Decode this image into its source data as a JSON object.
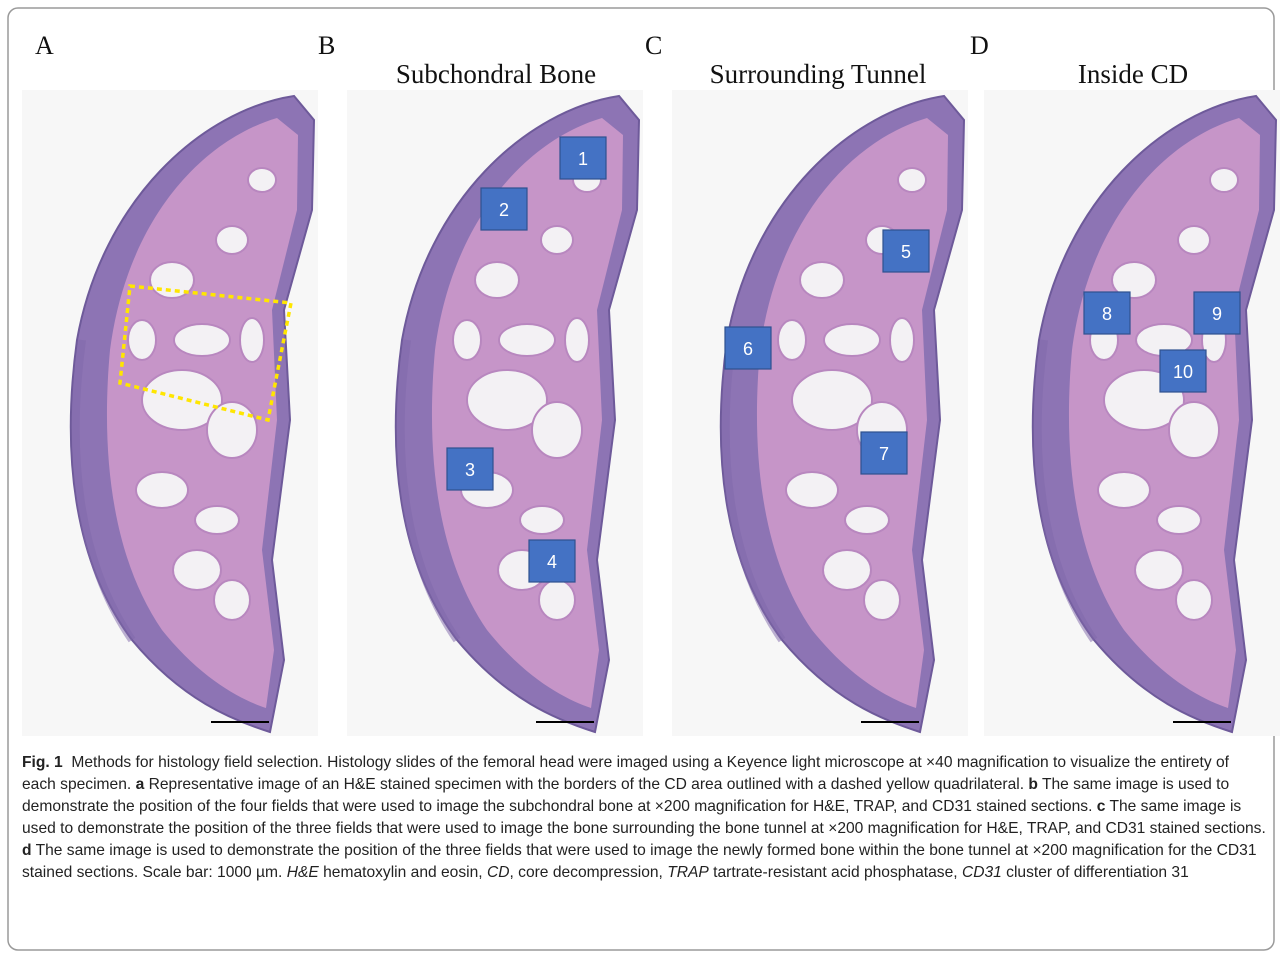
{
  "panels": [
    {
      "letter": "A"
    },
    {
      "letter": "B",
      "title": "Subchondral Bone",
      "boxes": [
        "1",
        "2",
        "3",
        "4"
      ]
    },
    {
      "letter": "C",
      "title": "Surrounding Tunnel",
      "boxes": [
        "5",
        "6",
        "7"
      ]
    },
    {
      "letter": "D",
      "title": "Inside CD",
      "boxes": [
        "8",
        "9",
        "10"
      ]
    }
  ],
  "caption": [
    "Fig. 1",
    "  Methods for histology field selection. Histology slides of the femoral head were imaged using a Keyence light microscope at ×40 magnification to visualize the entirety of each specimen. ",
    "a",
    " Representative image of an H&E stained specimen with the borders of the CD area outlined with a dashed yellow quadrilateral. ",
    "b",
    " The same image is used to demonstrate the position of the four fields that were used to image the subchondral bone at ×200 magnification for H&E, TRAP, and CD31 stained sections. ",
    "c",
    " The same image is used to demonstrate the position of the three fields that were used to image the bone surrounding the bone tunnel at ×200 magnification for H&E, TRAP, and CD31 stained sections. ",
    "d",
    " The same image is used to demonstrate the position of the three fields that were used to image the newly formed bone within the bone tunnel at ×200 magnification for the CD31 stained sections. Scale bar: 1000 µm. ",
    "H&E",
    " hematoxylin and eosin, ",
    "CD",
    ", core decompression, ",
    "TRAP",
    " tartrate-resistant acid phosphatase, ",
    "CD31",
    " cluster of differentiation 31"
  ]
}
